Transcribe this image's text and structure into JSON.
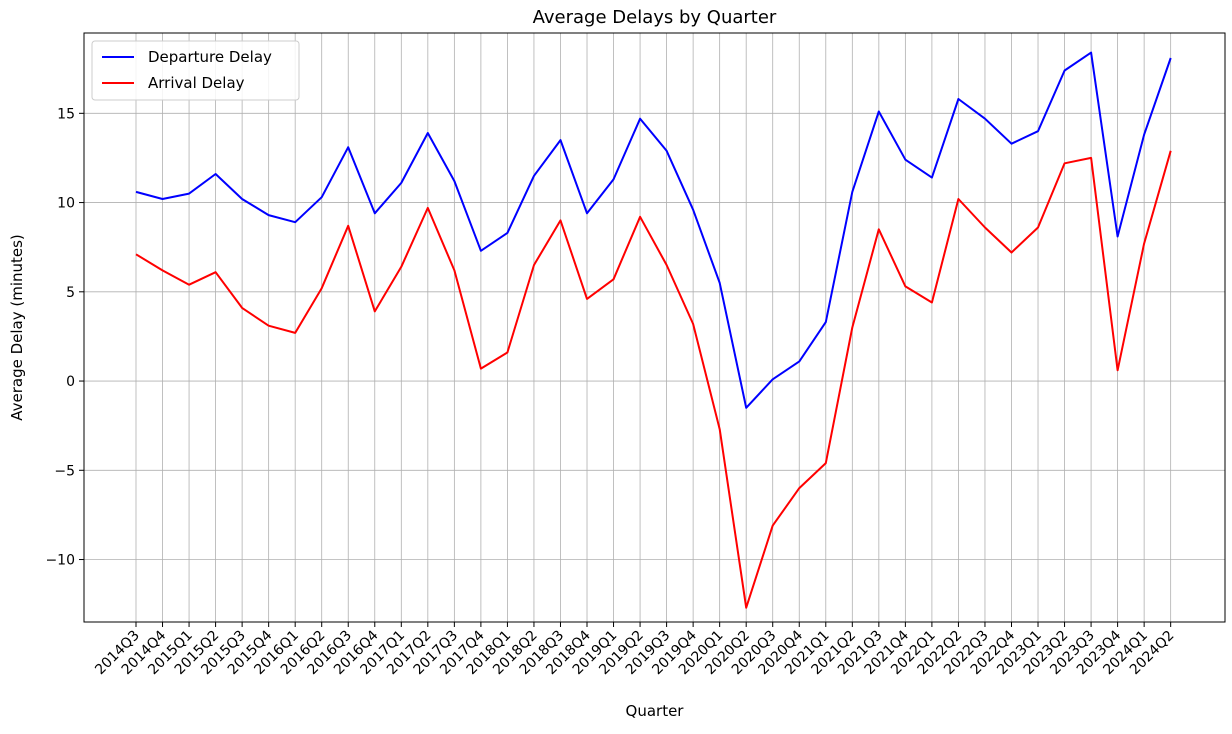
{
  "chart_data": {
    "type": "line",
    "title": "Average Delays by Quarter",
    "xlabel": "Quarter",
    "ylabel": "Average Delay (minutes)",
    "ylim": [
      -13.5,
      19.5
    ],
    "yticks": [
      -10,
      -5,
      0,
      5,
      10,
      15
    ],
    "grid": true,
    "legend_position": "top-left",
    "categories": [
      "2014Q3",
      "2014Q4",
      "2015Q1",
      "2015Q2",
      "2015Q3",
      "2015Q4",
      "2016Q1",
      "2016Q2",
      "2016Q3",
      "2016Q4",
      "2017Q1",
      "2017Q2",
      "2017Q3",
      "2017Q4",
      "2018Q1",
      "2018Q2",
      "2018Q3",
      "2018Q4",
      "2019Q1",
      "2019Q2",
      "2019Q3",
      "2019Q4",
      "2020Q1",
      "2020Q2",
      "2020Q3",
      "2020Q4",
      "2021Q1",
      "2021Q2",
      "2021Q3",
      "2021Q4",
      "2022Q1",
      "2022Q2",
      "2022Q3",
      "2022Q4",
      "2023Q1",
      "2023Q2",
      "2023Q3",
      "2023Q4",
      "2024Q1",
      "2024Q2"
    ],
    "series": [
      {
        "name": "Departure Delay",
        "color": "#0000ff",
        "values": [
          10.6,
          10.2,
          10.5,
          11.6,
          10.2,
          9.3,
          8.9,
          10.3,
          13.1,
          9.4,
          11.1,
          13.9,
          11.2,
          7.3,
          8.3,
          11.5,
          13.5,
          9.4,
          11.3,
          14.7,
          12.9,
          9.6,
          5.5,
          -1.5,
          0.1,
          1.1,
          3.3,
          10.6,
          15.1,
          12.4,
          11.4,
          15.8,
          14.7,
          13.3,
          14.0,
          17.4,
          18.4,
          8.1,
          13.8,
          18.1
        ]
      },
      {
        "name": "Arrival Delay",
        "color": "#ff0000",
        "values": [
          7.1,
          6.2,
          5.4,
          6.1,
          4.1,
          3.1,
          2.7,
          5.2,
          8.7,
          3.9,
          6.4,
          9.7,
          6.2,
          0.7,
          1.6,
          6.5,
          9.0,
          4.6,
          5.7,
          9.2,
          6.5,
          3.2,
          -2.7,
          -12.7,
          -8.1,
          -6.0,
          -4.6,
          3.0,
          8.5,
          5.3,
          4.4,
          10.2,
          8.6,
          7.2,
          8.6,
          12.2,
          12.5,
          0.6,
          7.7,
          12.9
        ]
      }
    ]
  }
}
